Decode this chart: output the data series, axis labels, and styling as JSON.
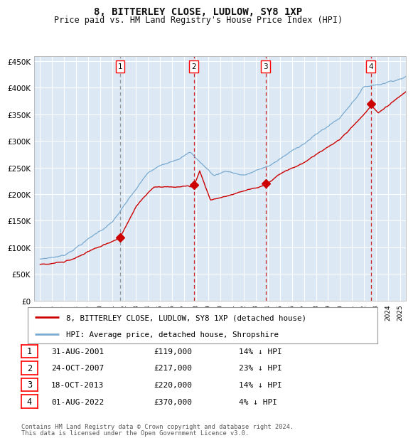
{
  "title": "8, BITTERLEY CLOSE, LUDLOW, SY8 1XP",
  "subtitle": "Price paid vs. HM Land Registry's House Price Index (HPI)",
  "footer1": "Contains HM Land Registry data © Crown copyright and database right 2024.",
  "footer2": "This data is licensed under the Open Government Licence v3.0.",
  "legend_red": "8, BITTERLEY CLOSE, LUDLOW, SY8 1XP (detached house)",
  "legend_blue": "HPI: Average price, detached house, Shropshire",
  "background_color": "#dce9f5",
  "grid_color": "#ffffff",
  "red_color": "#cc0000",
  "blue_color": "#7aaad0",
  "ylim": [
    0,
    460000
  ],
  "yticks": [
    0,
    50000,
    100000,
    150000,
    200000,
    250000,
    300000,
    350000,
    400000,
    450000
  ],
  "ytick_labels": [
    "£0",
    "£50K",
    "£100K",
    "£150K",
    "£200K",
    "£250K",
    "£300K",
    "£350K",
    "£400K",
    "£450K"
  ],
  "sales": [
    {
      "num": 1,
      "date": "31-AUG-2001",
      "price": 119000,
      "pct": "14%",
      "x_year": 2001.67
    },
    {
      "num": 2,
      "date": "24-OCT-2007",
      "price": 217000,
      "pct": "23%",
      "x_year": 2007.82
    },
    {
      "num": 3,
      "date": "18-OCT-2013",
      "price": 220000,
      "pct": "14%",
      "x_year": 2013.8
    },
    {
      "num": 4,
      "date": "01-AUG-2022",
      "price": 370000,
      "pct": "4%",
      "x_year": 2022.58
    }
  ],
  "xlim": [
    1994.5,
    2025.5
  ],
  "xtick_years": [
    1995,
    1996,
    1997,
    1998,
    1999,
    2000,
    2001,
    2002,
    2003,
    2004,
    2005,
    2006,
    2007,
    2008,
    2009,
    2010,
    2011,
    2012,
    2013,
    2014,
    2015,
    2016,
    2017,
    2018,
    2019,
    2020,
    2021,
    2022,
    2023,
    2024,
    2025
  ]
}
